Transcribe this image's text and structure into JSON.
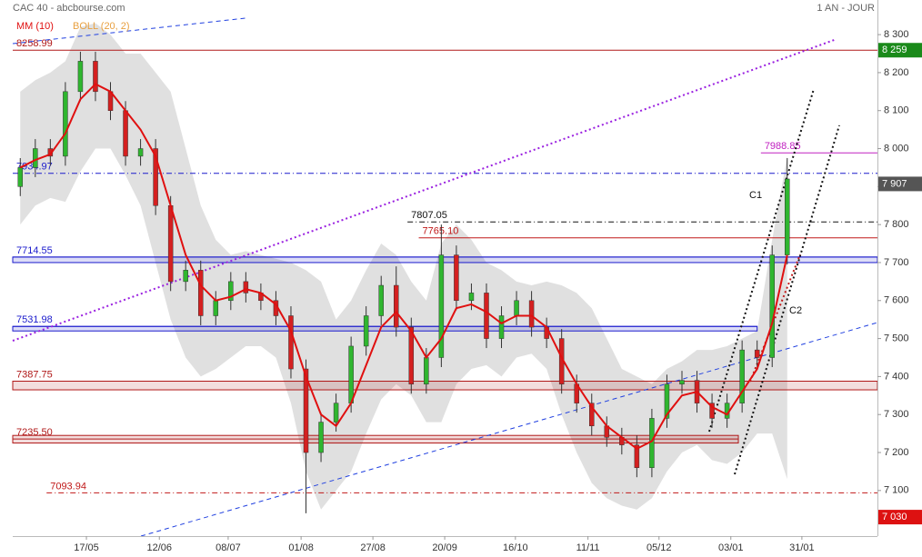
{
  "chart_data": {
    "type": "candlestick",
    "title": "CAC 40 - abcbourse.com",
    "period": "1 AN - JOUR",
    "indicators": [
      {
        "label": "MM (10)",
        "color": "#e01010"
      },
      {
        "label": "BOLL (20, 2)",
        "color": "#e8a040"
      }
    ],
    "xlim": [
      0,
      230
    ],
    "xticks": [
      {
        "value": 19.6,
        "label": "17/05"
      },
      {
        "value": 39,
        "label": "12/06"
      },
      {
        "value": 57.3,
        "label": "08/07"
      },
      {
        "value": 76.7,
        "label": "01/08"
      },
      {
        "value": 95.8,
        "label": "27/08"
      },
      {
        "value": 114.9,
        "label": "20/09"
      },
      {
        "value": 133.7,
        "label": "16/10"
      },
      {
        "value": 153,
        "label": "11/11"
      },
      {
        "value": 171.9,
        "label": "05/12"
      },
      {
        "value": 191,
        "label": "03/01"
      },
      {
        "value": 209.9,
        "label": "31/01"
      }
    ],
    "ylim": [
      6980,
      8372
    ],
    "yticks": [
      {
        "value": 8300,
        "label": "8 300"
      },
      {
        "value": 8200,
        "label": "8 200"
      },
      {
        "value": 8100,
        "label": "8 100"
      },
      {
        "value": 8000,
        "label": "8 000"
      },
      {
        "value": 7900,
        "label": "7 900"
      },
      {
        "value": 7800,
        "label": "7 800"
      },
      {
        "value": 7700,
        "label": "7 700"
      },
      {
        "value": 7600,
        "label": "7 600"
      },
      {
        "value": 7500,
        "label": "7 500"
      },
      {
        "value": 7400,
        "label": "7 400"
      },
      {
        "value": 7300,
        "label": "7 300"
      },
      {
        "value": 7200,
        "label": "7 200"
      },
      {
        "value": 7100,
        "label": "7 100"
      }
    ],
    "price_tags": [
      {
        "value": 8259,
        "label": "8 259",
        "color": "#1a8a1a"
      },
      {
        "value": 7907,
        "label": "7 907",
        "color": "#555555"
      },
      {
        "value": 7030,
        "label": "7 030",
        "color": "#dd1111"
      }
    ],
    "x": [
      2,
      6,
      10,
      14,
      18,
      22,
      26,
      30,
      34,
      38,
      42,
      46,
      50,
      54,
      58,
      62,
      66,
      70,
      74,
      78,
      82,
      86,
      90,
      94,
      98,
      102,
      106,
      110,
      114,
      118,
      122,
      126,
      130,
      134,
      138,
      142,
      146,
      150,
      154,
      158,
      162,
      166,
      170,
      174,
      178,
      182,
      186,
      190,
      194,
      198,
      202,
      206
    ],
    "open": [
      7900,
      7950,
      8000,
      7980,
      8150,
      8230,
      8150,
      8100,
      7980,
      8000,
      7850,
      7650,
      7680,
      7560,
      7600,
      7650,
      7620,
      7600,
      7560,
      7420,
      7200,
      7280,
      7330,
      7480,
      7560,
      7640,
      7530,
      7380,
      7450,
      7720,
      7600,
      7620,
      7500,
      7560,
      7600,
      7530,
      7500,
      7380,
      7330,
      7270,
      7240,
      7220,
      7160,
      7290,
      7380,
      7390,
      7330,
      7290,
      7330,
      7470,
      7450,
      7720
    ],
    "high": [
      7975,
      8025,
      8025,
      8175,
      8255,
      8255,
      8175,
      8125,
      8025,
      8025,
      7875,
      7705,
      7705,
      7625,
      7675,
      7675,
      7645,
      7625,
      7585,
      7445,
      7305,
      7355,
      7505,
      7585,
      7665,
      7690,
      7555,
      7475,
      7800,
      7745,
      7645,
      7645,
      7585,
      7625,
      7625,
      7555,
      7525,
      7405,
      7355,
      7295,
      7265,
      7245,
      7315,
      7405,
      7415,
      7415,
      7355,
      7355,
      7495,
      7495,
      7745,
      7975
    ],
    "low": [
      7875,
      7925,
      7955,
      7955,
      8125,
      8125,
      8075,
      7955,
      7955,
      7825,
      7625,
      7625,
      7535,
      7535,
      7575,
      7595,
      7575,
      7535,
      7395,
      7040,
      7175,
      7255,
      7305,
      7455,
      7535,
      7505,
      7355,
      7355,
      7425,
      7575,
      7575,
      7475,
      7475,
      7535,
      7505,
      7475,
      7355,
      7305,
      7245,
      7215,
      7195,
      7135,
      7135,
      7265,
      7355,
      7305,
      7265,
      7265,
      7305,
      7425,
      7425,
      7695
    ],
    "close": [
      7950,
      8000,
      7980,
      8150,
      8230,
      8150,
      8100,
      7980,
      8000,
      7850,
      7650,
      7680,
      7560,
      7600,
      7650,
      7620,
      7600,
      7560,
      7420,
      7200,
      7280,
      7330,
      7480,
      7560,
      7640,
      7530,
      7380,
      7450,
      7720,
      7600,
      7620,
      7500,
      7560,
      7600,
      7530,
      7500,
      7380,
      7330,
      7270,
      7240,
      7220,
      7160,
      7290,
      7380,
      7390,
      7330,
      7290,
      7330,
      7470,
      7450,
      7720,
      7920
    ],
    "ma": [
      7950,
      7970,
      7985,
      8040,
      8130,
      8170,
      8150,
      8100,
      8050,
      7980,
      7850,
      7720,
      7640,
      7600,
      7610,
      7630,
      7620,
      7590,
      7520,
      7400,
      7300,
      7270,
      7330,
      7430,
      7530,
      7570,
      7520,
      7450,
      7500,
      7580,
      7590,
      7570,
      7540,
      7560,
      7560,
      7530,
      7450,
      7380,
      7320,
      7270,
      7240,
      7210,
      7230,
      7300,
      7350,
      7360,
      7320,
      7300,
      7360,
      7420,
      7540,
      7720
    ],
    "boll_upper": [
      8150,
      8180,
      8200,
      8230,
      8320,
      8330,
      8300,
      8250,
      8250,
      8200,
      8150,
      8000,
      7850,
      7760,
      7720,
      7730,
      7720,
      7710,
      7700,
      7680,
      7650,
      7550,
      7600,
      7680,
      7750,
      7720,
      7650,
      7600,
      7750,
      7800,
      7760,
      7700,
      7680,
      7650,
      7640,
      7650,
      7640,
      7620,
      7580,
      7500,
      7420,
      7400,
      7380,
      7420,
      7440,
      7470,
      7470,
      7480,
      7500,
      7520,
      7760,
      7980
    ],
    "boll_lower": [
      7800,
      7850,
      7870,
      7860,
      7940,
      8000,
      8000,
      7930,
      7850,
      7700,
      7550,
      7450,
      7400,
      7420,
      7450,
      7480,
      7480,
      7450,
      7330,
      7150,
      7050,
      7100,
      7150,
      7250,
      7340,
      7380,
      7350,
      7280,
      7280,
      7380,
      7420,
      7430,
      7400,
      7450,
      7460,
      7420,
      7300,
      7200,
      7120,
      7080,
      7060,
      7050,
      7080,
      7150,
      7200,
      7220,
      7180,
      7170,
      7200,
      7250,
      7250,
      7130
    ],
    "up_color": "#2fb62f",
    "down_color": "#d42020",
    "ma_color": "#e01010",
    "band_color": "#d8d8d8",
    "levels": [
      {
        "value": 8258.99,
        "color": "#b01818",
        "style": "solid"
      },
      {
        "value": 7934.97,
        "color": "#1a1acc",
        "style": "dashdot"
      },
      {
        "value": 7807.05,
        "color": "#111111",
        "style": "dashdot",
        "from": 105
      },
      {
        "value": 7765.1,
        "label": "7765.10",
        "color": "#c01818",
        "style": "solid",
        "from": 108
      },
      {
        "value": 7714.55,
        "color": "#1a1acc",
        "style": "solid",
        "zone": [
          7700,
          7714.55
        ]
      },
      {
        "value": 7531.98,
        "color": "#1a1acc",
        "style": "solid",
        "zone": [
          7520,
          7531.98
        ],
        "to": 198
      },
      {
        "value": 7387.75,
        "color": "#b01818",
        "style": "solid",
        "zone": [
          7365,
          7387.75
        ]
      },
      {
        "value": 7235.5,
        "label": "7235.50",
        "color": "#b01818",
        "style": "solid",
        "zone": [
          7225,
          7245
        ],
        "to": 193
      },
      {
        "value": 7093.94,
        "color": "#c01818",
        "style": "dashdot",
        "from": 9
      },
      {
        "value": 7988.85,
        "color": "#c020c0",
        "style": "solid",
        "from": 199
      }
    ],
    "annotations": [
      "C1",
      "C2"
    ]
  }
}
